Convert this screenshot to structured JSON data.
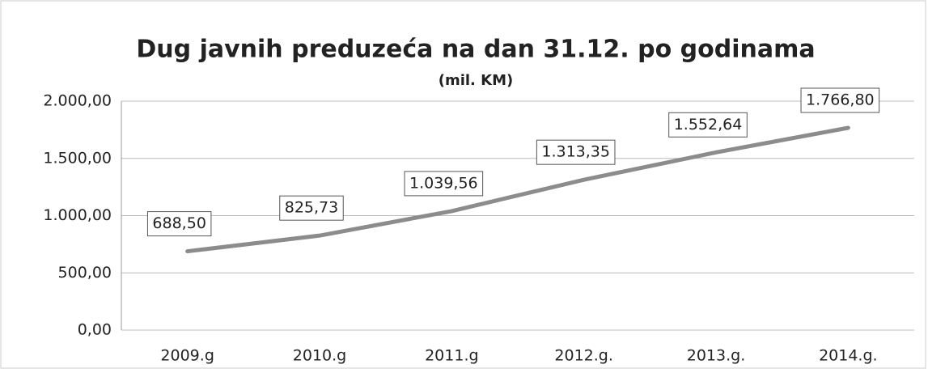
{
  "chart_data": {
    "type": "line",
    "title": "Dug javnih preduzeća na dan 31.12. po godinama",
    "subtitle": "(mil. KM)",
    "categories": [
      "2009.g",
      "2010.g",
      "2011.g",
      "2012.g.",
      "2013.g.",
      "2014.g."
    ],
    "series": [
      {
        "name": "Dug",
        "color": "#8c8c8c",
        "values": [
          688.5,
          825.73,
          1039.56,
          1313.35,
          1552.64,
          1766.8
        ],
        "value_labels": [
          "688,50",
          "825,73",
          "1.039,56",
          "1.313,35",
          "1.552,64",
          "1.766,80"
        ]
      }
    ],
    "ylim": [
      0,
      2000
    ],
    "yticks": [
      {
        "value": 0,
        "label": "0,00"
      },
      {
        "value": 500,
        "label": "500,00"
      },
      {
        "value": 1000,
        "label": "1.000,00"
      },
      {
        "value": 1500,
        "label": "1.500,00"
      },
      {
        "value": 2000,
        "label": "2.000,00"
      }
    ],
    "grid": true
  }
}
